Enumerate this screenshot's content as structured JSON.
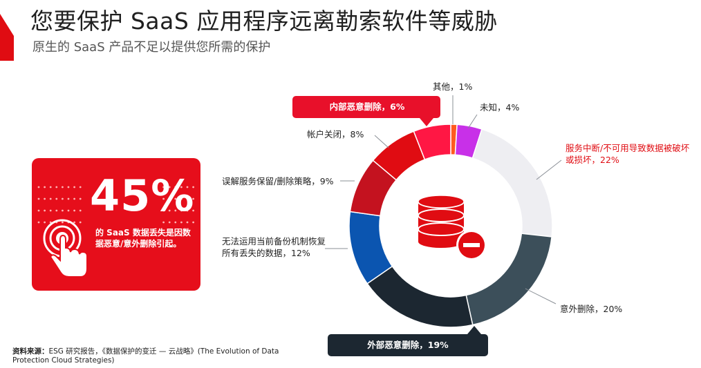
{
  "header": {
    "title": "您要保护 SaaS 应用程序远离勒索软件等威胁",
    "subtitle": "原生的 SaaS 产品不足以提供您所需的保护"
  },
  "stat_card": {
    "value": "45%",
    "description": "的 SaaS 数据丢失是因数据恶意/意外删除引起。",
    "icon": "tap-hand-icon",
    "color": "#e60e1b"
  },
  "source": {
    "label": "资料来源：",
    "text": "ESG 研究报告，《数据保护的变迁 — 云战略》(The Evolution of Data Protection Cloud Strategies)"
  },
  "chart_data": {
    "type": "pie",
    "style": "donut",
    "center_icon": "database-minus-icon",
    "slices": [
      {
        "label": "其他，1%",
        "value": 1,
        "color": "#ff5a1f"
      },
      {
        "label": "未知，4%",
        "value": 4,
        "color": "#c830e8"
      },
      {
        "label": "服务中断/不可用导致数据被破坏或损坏，22%",
        "value": 22,
        "color": "#eeeef2"
      },
      {
        "label": "意外删除，20%",
        "value": 20,
        "color": "#3c4f5a"
      },
      {
        "label": "外部恶意删除，19%",
        "value": 19,
        "color": "#1c2731"
      },
      {
        "label": "无法运用当前备份机制恢复所有丢失的数据，12%",
        "value": 12,
        "color": "#0b55b0"
      },
      {
        "label": "误解服务保留/删除策略，9%",
        "value": 9,
        "color": "#c4121f"
      },
      {
        "label": "帐户关闭，8%",
        "value": 8,
        "color": "#e00c12"
      },
      {
        "label": "内部恶意删除，6%",
        "value": 6,
        "color": "#ff1744"
      }
    ],
    "highlight_colors": {
      "internal": "#e8102a",
      "external": "#1c2731"
    }
  }
}
